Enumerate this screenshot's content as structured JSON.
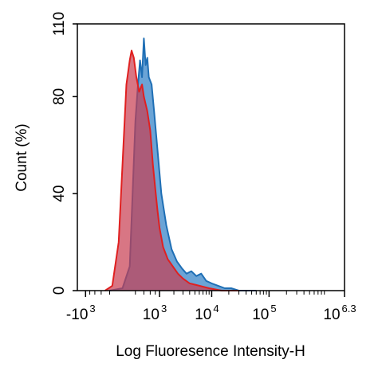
{
  "chart_data": {
    "type": "area",
    "title": "",
    "xlabel": "Log Fluoresence Intensity-H",
    "ylabel": "Count  (%)",
    "ylim": [
      0,
      110
    ],
    "xlim": [
      -1500,
      2000000
    ],
    "x_scale": "biexponential",
    "y_ticks": [
      {
        "value": 0,
        "label": "0"
      },
      {
        "value": 40,
        "label": "40"
      },
      {
        "value": 80,
        "label": "80"
      },
      {
        "value": 110,
        "label": "110"
      }
    ],
    "x_ticks": [
      {
        "value": -1000,
        "base": "-10",
        "exp": "3"
      },
      {
        "value": 1000,
        "base": "10",
        "exp": "3"
      },
      {
        "value": 10000,
        "base": "10",
        "exp": "4"
      },
      {
        "value": 100000,
        "base": "10",
        "exp": "5"
      },
      {
        "value": 2000000,
        "base": "10",
        "exp": "6.3"
      }
    ],
    "grid": false,
    "legend": "none",
    "series": [
      {
        "color": "#1f6fb5",
        "fill": "#3a86c8",
        "points": [
          [
            -200,
            0
          ],
          [
            0,
            1
          ],
          [
            100,
            10
          ],
          [
            150,
            42
          ],
          [
            200,
            70
          ],
          [
            250,
            84
          ],
          [
            300,
            95
          ],
          [
            350,
            88
          ],
          [
            400,
            104
          ],
          [
            450,
            93
          ],
          [
            500,
            96
          ],
          [
            550,
            88
          ],
          [
            650,
            85
          ],
          [
            750,
            74
          ],
          [
            900,
            58
          ],
          [
            1100,
            40
          ],
          [
            1400,
            27
          ],
          [
            1800,
            17
          ],
          [
            2300,
            12
          ],
          [
            2900,
            9
          ],
          [
            3500,
            7
          ],
          [
            4300,
            8
          ],
          [
            5300,
            6
          ],
          [
            6500,
            7
          ],
          [
            8000,
            4
          ],
          [
            10000,
            3
          ],
          [
            13000,
            2
          ],
          [
            17000,
            1
          ],
          [
            22000,
            1
          ],
          [
            30000,
            0
          ],
          [
            60000,
            0
          ]
        ]
      },
      {
        "color": "#e02020",
        "fill": "#c83c50",
        "points": [
          [
            -300,
            0
          ],
          [
            -150,
            2
          ],
          [
            -50,
            20
          ],
          [
            0,
            52
          ],
          [
            50,
            85
          ],
          [
            100,
            95
          ],
          [
            130,
            99
          ],
          [
            170,
            96
          ],
          [
            220,
            88
          ],
          [
            280,
            82
          ],
          [
            350,
            85
          ],
          [
            400,
            80
          ],
          [
            500,
            74
          ],
          [
            600,
            66
          ],
          [
            700,
            52
          ],
          [
            800,
            42
          ],
          [
            900,
            33
          ],
          [
            1000,
            26
          ],
          [
            1200,
            18
          ],
          [
            1500,
            13
          ],
          [
            1900,
            10
          ],
          [
            2400,
            7
          ],
          [
            3000,
            5
          ],
          [
            4000,
            3
          ],
          [
            6000,
            2
          ],
          [
            9000,
            1
          ],
          [
            15000,
            0
          ],
          [
            30000,
            0
          ]
        ]
      }
    ]
  }
}
